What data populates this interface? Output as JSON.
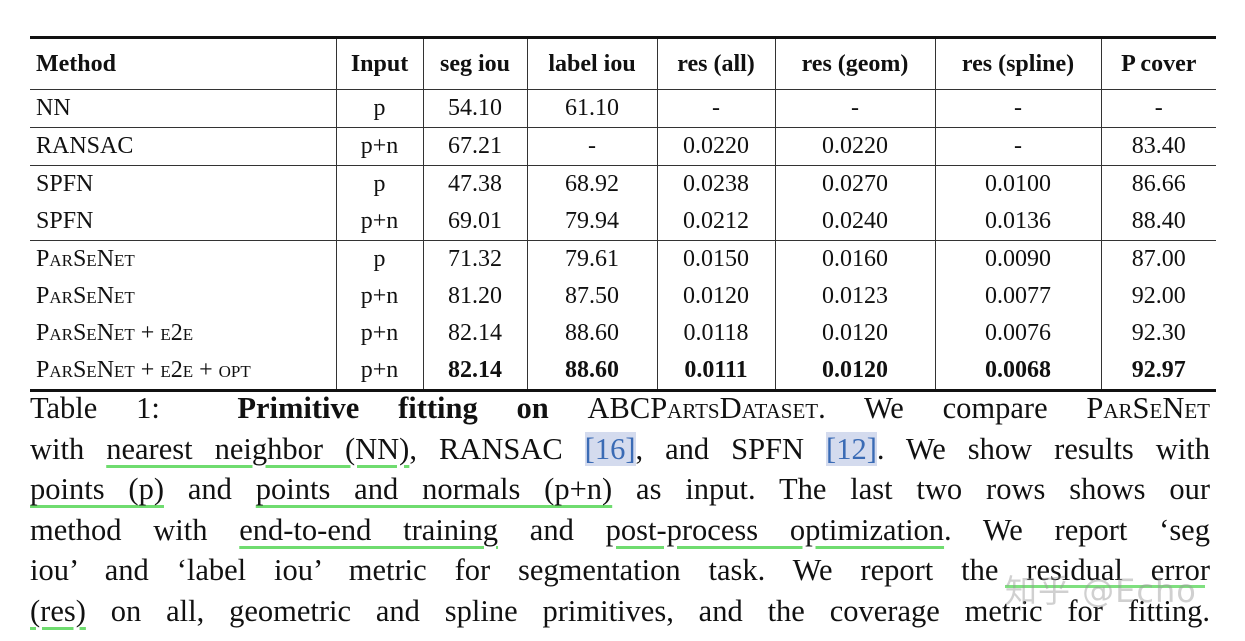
{
  "table": {
    "headers": [
      "Method",
      "Input",
      "seg iou",
      "label iou",
      "res (all)",
      "res (geom)",
      "res (spline)",
      "P cover"
    ],
    "groups": [
      [
        {
          "method": "NN",
          "input": "p",
          "values": [
            "54.10",
            "61.10",
            "-",
            "-",
            "-",
            "-"
          ]
        }
      ],
      [
        {
          "method": "RANSAC",
          "input": "p+n",
          "values": [
            "67.21",
            "-",
            "0.0220",
            "0.0220",
            "-",
            "83.40"
          ]
        }
      ],
      [
        {
          "method": "SPFN",
          "input": "p",
          "values": [
            "47.38",
            "68.92",
            "0.0238",
            "0.0270",
            "0.0100",
            "86.66"
          ]
        },
        {
          "method": "SPFN",
          "input": "p+n",
          "values": [
            "69.01",
            "79.94",
            "0.0212",
            "0.0240",
            "0.0136",
            "88.40"
          ]
        }
      ],
      [
        {
          "method": "ParSeNet",
          "input": "p",
          "values": [
            "71.32",
            "79.61",
            "0.0150",
            "0.0160",
            "0.0090",
            "87.00"
          ]
        },
        {
          "method": "ParSeNet",
          "input": "p+n",
          "values": [
            "81.20",
            "87.50",
            "0.0120",
            "0.0123",
            "0.0077",
            "92.00"
          ]
        },
        {
          "method": "ParSeNet + e2e",
          "input": "p+n",
          "values": [
            "82.14",
            "88.60",
            "0.0118",
            "0.0120",
            "0.0076",
            "92.30"
          ]
        },
        {
          "method": "ParSeNet + e2e + opt",
          "input": "p+n",
          "values": [
            "82.14",
            "88.60",
            "0.0111",
            "0.0120",
            "0.0068",
            "92.97"
          ],
          "bold": true
        }
      ]
    ]
  },
  "caption": {
    "label": "Table 1:",
    "title": "Primitive fitting on",
    "dataset": "ABCPartsDataset",
    "l1_rest": ". We compare ",
    "parsenet": "ParSeNet",
    "l2_a": "with ",
    "l2_nn": "nearest neighbor (NN)",
    "l2_b": ", RANSAC ",
    "cite_ransac": "[16]",
    "l2_c": ", and SPFN ",
    "cite_spfn": "[12]",
    "l2_d": ". We show results with",
    "l3_p": "points (p)",
    "l3_a": " and ",
    "l3_pn": "points and normals (p+n)",
    "l3_b": " as input. The last two rows shows our",
    "l4_a": "method with ",
    "l4_e2e": "end-to-end training",
    "l4_b": " and ",
    "l4_opt": "post-process optimization",
    "l4_c": ". We report ‘seg",
    "l5_a": "iou’ and ‘label iou’ metric for segmentation task. We report the ",
    "l5_res": "residual error",
    "l6_res": "(res)",
    "l6_a": " on all, geometric and spline primitives, and the coverage metric for fitting."
  },
  "watermark": "知乎 @Echo",
  "colors": {
    "underline": "#6fdc6f",
    "cite_bg": "#d4dbee",
    "cite_text": "#3a6bb5"
  }
}
